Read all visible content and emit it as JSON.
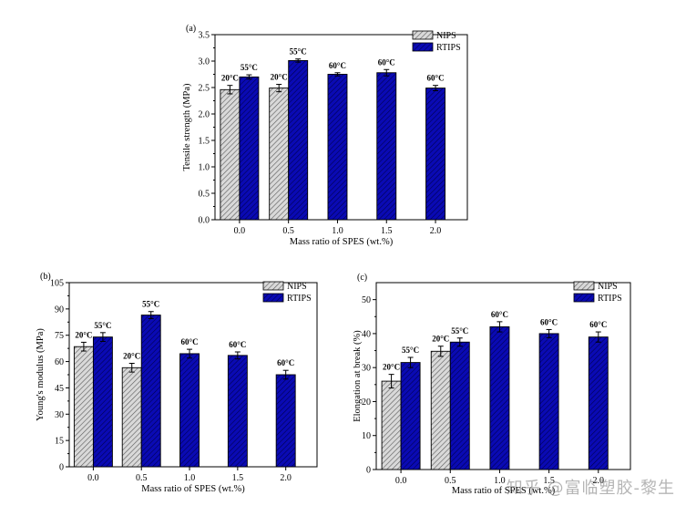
{
  "watermark": "知乎 @富临塑胶-黎生",
  "colors": {
    "nips_fill": "#d9d9d9",
    "nips_hatch": "#555555",
    "rtips_fill": "#0a0ab4",
    "rtips_hatch": "#000050",
    "edge": "#000000"
  },
  "chart_data": [
    {
      "type": "bar",
      "panel_label": "(a)",
      "title": "",
      "xlabel": "Mass ratio of SPES (wt.%)",
      "ylabel": "Tensile strength (MPa)",
      "ylim": [
        0,
        3.5
      ],
      "yticks": [
        "0.0",
        "0.5",
        "1.0",
        "1.5",
        "2.0",
        "2.5",
        "3.0",
        "3.5"
      ],
      "categories": [
        "0.0",
        "0.5",
        "1.0",
        "1.5",
        "2.0"
      ],
      "legend": {
        "position": "top-right",
        "entries": [
          "NIPS",
          "RTIPS"
        ]
      },
      "series": [
        {
          "name": "NIPS",
          "values": [
            2.46,
            2.49,
            null,
            null,
            null
          ],
          "errors": [
            0.08,
            0.07,
            null,
            null,
            null
          ],
          "labels": [
            "20°C",
            "20°C",
            null,
            null,
            null
          ]
        },
        {
          "name": "RTIPS",
          "values": [
            2.7,
            3.01,
            2.75,
            2.78,
            2.49
          ],
          "errors": [
            0.04,
            0.03,
            0.03,
            0.06,
            0.05
          ],
          "labels": [
            "55°C",
            "55°C",
            "60°C",
            "60°C",
            "60°C"
          ]
        }
      ]
    },
    {
      "type": "bar",
      "panel_label": "(b)",
      "title": "",
      "xlabel": "Mass ratio of SPES (wt.%)",
      "ylabel": "Young's modulus (MPa)",
      "ylim": [
        0,
        105
      ],
      "yticks": [
        "0",
        "15",
        "30",
        "45",
        "60",
        "75",
        "90",
        "105"
      ],
      "categories": [
        "0.0",
        "0.5",
        "1.0",
        "1.5",
        "2.0"
      ],
      "legend": {
        "position": "top-right",
        "entries": [
          "NIPS",
          "RTIPS"
        ]
      },
      "series": [
        {
          "name": "NIPS",
          "values": [
            68.5,
            56.5,
            null,
            null,
            null
          ],
          "errors": [
            2.5,
            2.5,
            null,
            null,
            null
          ],
          "labels": [
            "20°C",
            "20°C",
            null,
            null,
            null
          ]
        },
        {
          "name": "RTIPS",
          "values": [
            74.0,
            86.5,
            64.5,
            63.5,
            52.5
          ],
          "errors": [
            2.5,
            2.0,
            2.5,
            2.0,
            2.5
          ],
          "labels": [
            "55°C",
            "55°C",
            "60°C",
            "60°C",
            "60°C"
          ]
        }
      ]
    },
    {
      "type": "bar",
      "panel_label": "(c)",
      "title": "",
      "xlabel": "Mass ratio of SPES (wt.%)",
      "ylabel": "Elongation at break (%)",
      "ylim": [
        0,
        55
      ],
      "yticks": [
        "0",
        "10",
        "20",
        "30",
        "40",
        "50"
      ],
      "categories": [
        "0.0",
        "0.5",
        "1.0",
        "1.5",
        "2.0"
      ],
      "legend": {
        "position": "top-right",
        "entries": [
          "NIPS",
          "RTIPS"
        ]
      },
      "series": [
        {
          "name": "NIPS",
          "values": [
            26.0,
            34.8,
            null,
            null,
            null
          ],
          "errors": [
            2.0,
            1.5,
            null,
            null,
            null
          ],
          "labels": [
            "20°C",
            "20°C",
            null,
            null,
            null
          ]
        },
        {
          "name": "RTIPS",
          "values": [
            31.5,
            37.5,
            42.0,
            40.0,
            39.0
          ],
          "errors": [
            1.5,
            1.2,
            1.5,
            1.2,
            1.5
          ],
          "labels": [
            "55°C",
            "55°C",
            "60°C",
            "60°C",
            "60°C"
          ]
        }
      ]
    }
  ]
}
